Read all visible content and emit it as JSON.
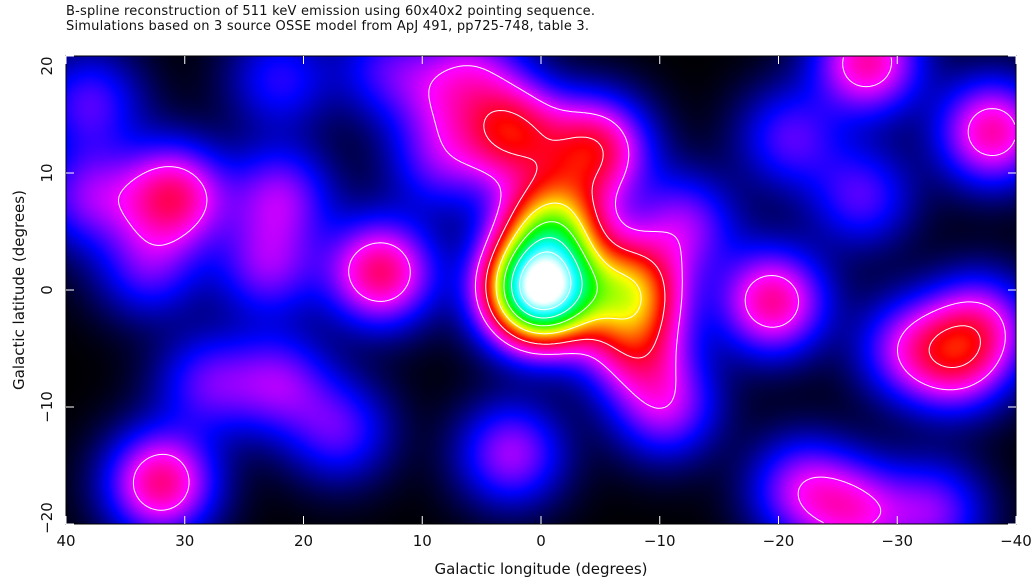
{
  "title_lines": [
    "B-spline reconstruction of 511 keV emission using 60x40x2 pointing sequence.",
    "Simulations based on 3 source OSSE model from ApJ 491, pp725-748, table 3."
  ],
  "chart_data": {
    "type": "heatmap",
    "title": "B-spline reconstruction of 511 keV emission using 60x40x2 pointing sequence.",
    "subtitle": "Simulations based on 3 source OSSE model from ApJ 491, pp725-748, table 3.",
    "xlabel": "Galactic longitude (degrees)",
    "ylabel": "Galactic latitude (degrees)",
    "xlim": [
      40,
      -40
    ],
    "ylim": [
      -20,
      20
    ],
    "x_ticks": [
      40,
      30,
      20,
      10,
      0,
      -10,
      -20,
      -30,
      -40
    ],
    "x_tick_labels": [
      "40",
      "30",
      "20",
      "10",
      "0",
      "−10",
      "−20",
      "−30",
      "−40"
    ],
    "y_ticks": [
      -20,
      -10,
      0,
      10,
      20
    ],
    "y_tick_labels": [
      "−20",
      "−10",
      "0",
      "10",
      "20"
    ],
    "colormap": [
      "#000000",
      "#0000ff",
      "#ff00ff",
      "#ff0000",
      "#ffff00",
      "#00ff00",
      "#00ffff",
      "#ffffff"
    ],
    "contour_color": "#ffffff",
    "intensity_peaks": [
      {
        "lon": 0.0,
        "lat": 0.0,
        "intensity": 1.0
      },
      {
        "lon": -1.0,
        "lat": 5.5,
        "intensity": 0.45
      },
      {
        "lon": -7.5,
        "lat": 0.0,
        "intensity": 0.4
      },
      {
        "lon": 2.5,
        "lat": 13.5,
        "intensity": 0.3
      },
      {
        "lon": -4.5,
        "lat": 12.0,
        "intensity": 0.3
      },
      {
        "lon": 13.5,
        "lat": 1.5,
        "intensity": 0.28
      },
      {
        "lon": 31.0,
        "lat": 8.0,
        "intensity": 0.27
      },
      {
        "lon": 32.0,
        "lat": -16.5,
        "intensity": 0.27
      },
      {
        "lon": -19.5,
        "lat": -1.0,
        "intensity": 0.26
      },
      {
        "lon": -38.0,
        "lat": 13.5,
        "intensity": 0.25
      },
      {
        "lon": -27.5,
        "lat": 19.5,
        "intensity": 0.25
      },
      {
        "lon": -8.0,
        "lat": -5.0,
        "intensity": 0.22
      },
      {
        "lon": 8.5,
        "lat": 11.0,
        "intensity": 0.12
      },
      {
        "lon": 8.5,
        "lat": 16.5,
        "intensity": 0.1
      },
      {
        "lon": 22.0,
        "lat": 8.0,
        "intensity": 0.15
      },
      {
        "lon": 23.0,
        "lat": 2.0,
        "intensity": 0.14
      },
      {
        "lon": 38.0,
        "lat": 8.0,
        "intensity": 0.14
      },
      {
        "lon": 33.0,
        "lat": 2.0,
        "intensity": 0.12
      },
      {
        "lon": 22.0,
        "lat": -8.0,
        "intensity": 0.14
      },
      {
        "lon": 28.0,
        "lat": -8.0,
        "intensity": 0.12
      },
      {
        "lon": 17.0,
        "lat": -12.0,
        "intensity": 0.12
      },
      {
        "lon": 2.5,
        "lat": -14.0,
        "intensity": 0.16
      },
      {
        "lon": -10.5,
        "lat": -10.0,
        "intensity": 0.16
      },
      {
        "lon": -12.0,
        "lat": 5.5,
        "intensity": 0.15
      },
      {
        "lon": -21.0,
        "lat": 13.0,
        "intensity": 0.12
      },
      {
        "lon": -27.0,
        "lat": 8.0,
        "intensity": 0.12
      },
      {
        "lon": -31.0,
        "lat": -5.0,
        "intensity": 0.15
      },
      {
        "lon": -35.0,
        "lat": -6.0,
        "intensity": 0.2
      },
      {
        "lon": -37.0,
        "lat": -3.0,
        "intensity": 0.18
      },
      {
        "lon": -22.0,
        "lat": -17.0,
        "intensity": 0.16
      },
      {
        "lon": -26.5,
        "lat": -19.0,
        "intensity": 0.18
      },
      {
        "lon": -33.0,
        "lat": -19.0,
        "intensity": 0.14
      },
      {
        "lon": 5.5,
        "lat": 19.0,
        "intensity": 0.12
      },
      {
        "lon": 13.0,
        "lat": 19.0,
        "intensity": 0.1
      },
      {
        "lon": 22.0,
        "lat": 18.0,
        "intensity": 0.1
      },
      {
        "lon": 38.0,
        "lat": 16.0,
        "intensity": 0.12
      }
    ]
  }
}
